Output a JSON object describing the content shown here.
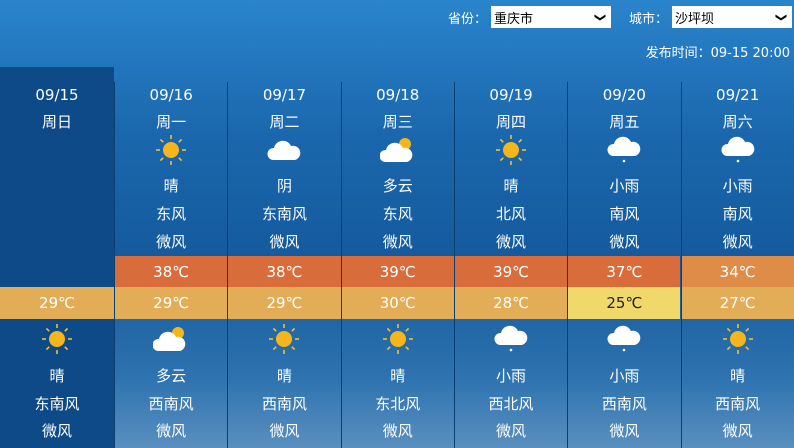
{
  "header": {
    "province_label": "省份：",
    "province_value": "重庆市",
    "city_label": "城市：",
    "city_value": "沙坪坝",
    "publish_time": "发布时间：09-15 20:00"
  },
  "colors": {
    "hot": "#d96c3b",
    "warm": "#df8c48",
    "mild": "#e3ac56",
    "cool": "#f0d96a"
  },
  "days": [
    {
      "date": "09/15",
      "weekday": "周日",
      "day": null,
      "high": null,
      "low": "29℃",
      "low_color": "mild",
      "night": {
        "icon": "sun-icon",
        "weather": "晴",
        "wind_dir": "东南风",
        "wind_level": "微风"
      }
    },
    {
      "date": "09/16",
      "weekday": "周一",
      "day": {
        "icon": "sun-icon",
        "weather": "晴",
        "wind_dir": "东风",
        "wind_level": "微风"
      },
      "high": "38℃",
      "high_color": "hot",
      "low": "29℃",
      "low_color": "mild",
      "night": {
        "icon": "partly-cloudy-icon",
        "weather": "多云",
        "wind_dir": "西南风",
        "wind_level": "微风"
      }
    },
    {
      "date": "09/17",
      "weekday": "周二",
      "day": {
        "icon": "cloud-icon",
        "weather": "阴",
        "wind_dir": "东南风",
        "wind_level": "微风"
      },
      "high": "38℃",
      "high_color": "hot",
      "low": "29℃",
      "low_color": "mild",
      "night": {
        "icon": "sun-icon",
        "weather": "晴",
        "wind_dir": "西南风",
        "wind_level": "微风"
      }
    },
    {
      "date": "09/18",
      "weekday": "周三",
      "day": {
        "icon": "partly-cloudy-icon",
        "weather": "多云",
        "wind_dir": "东风",
        "wind_level": "微风"
      },
      "high": "39℃",
      "high_color": "hot",
      "low": "30℃",
      "low_color": "mild",
      "night": {
        "icon": "sun-icon",
        "weather": "晴",
        "wind_dir": "东北风",
        "wind_level": "微风"
      }
    },
    {
      "date": "09/19",
      "weekday": "周四",
      "day": {
        "icon": "sun-icon",
        "weather": "晴",
        "wind_dir": "北风",
        "wind_level": "微风"
      },
      "high": "39℃",
      "high_color": "hot",
      "low": "28℃",
      "low_color": "mild",
      "night": {
        "icon": "rain-icon",
        "weather": "小雨",
        "wind_dir": "西北风",
        "wind_level": "微风"
      }
    },
    {
      "date": "09/20",
      "weekday": "周五",
      "day": {
        "icon": "rain-icon",
        "weather": "小雨",
        "wind_dir": "南风",
        "wind_level": "微风"
      },
      "high": "37℃",
      "high_color": "hot",
      "low": "25℃",
      "low_color": "cool",
      "night": {
        "icon": "rain-icon",
        "weather": "小雨",
        "wind_dir": "西南风",
        "wind_level": "微风"
      }
    },
    {
      "date": "09/21",
      "weekday": "周六",
      "day": {
        "icon": "rain-icon",
        "weather": "小雨",
        "wind_dir": "南风",
        "wind_level": "微风"
      },
      "high": "34℃",
      "high_color": "warm",
      "low": "27℃",
      "low_color": "mild",
      "night": {
        "icon": "sun-icon",
        "weather": "晴",
        "wind_dir": "西南风",
        "wind_level": "微风"
      }
    }
  ]
}
